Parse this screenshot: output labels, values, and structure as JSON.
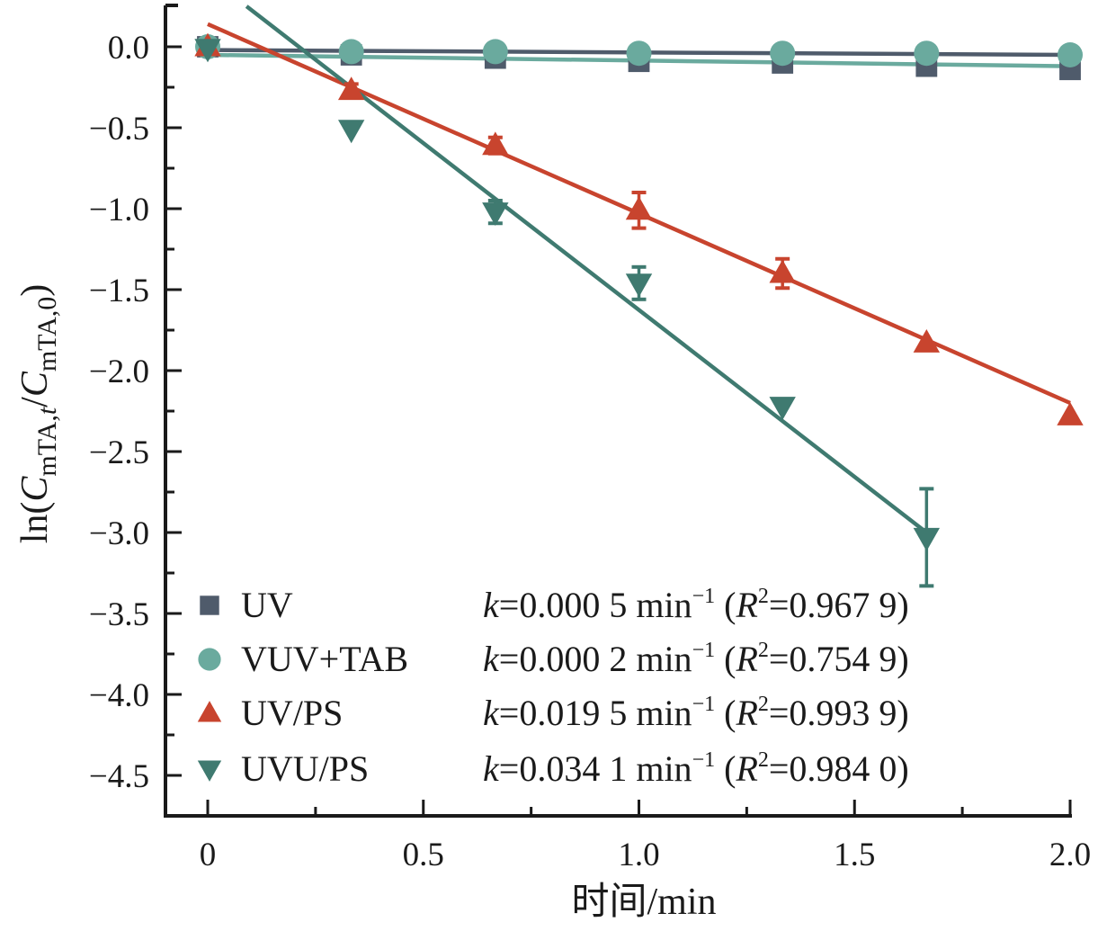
{
  "chart_data": {
    "type": "scatter",
    "title": "",
    "xlabel": "时间/min",
    "ylabel": "ln(C_mTA,t/C_mTA,0)",
    "ylabel_parts": {
      "prefix": "ln(",
      "c1": "C",
      "sub1": "mTA,",
      "sub1_italic": "t",
      "slash": "/",
      "c2": "C",
      "sub2": "mTA,0",
      "suffix": ")"
    },
    "xlim": [
      -0.1,
      2.0
    ],
    "ylim": [
      -4.8,
      0.25
    ],
    "xticks": [
      0,
      0.5,
      1.0,
      1.5,
      2.0
    ],
    "xtick_labels": [
      "0",
      "0.5",
      "1.0",
      "1.5",
      "2.0"
    ],
    "yticks": [
      0.0,
      -0.5,
      -1.0,
      -1.5,
      -2.0,
      -2.5,
      -3.0,
      -3.5,
      -4.0,
      -4.5
    ],
    "ytick_labels": [
      "0.0",
      "−0.5",
      "−1.0",
      "−1.5",
      "−2.0",
      "−2.5",
      "−3.0",
      "−3.5",
      "−4.0",
      "−4.5"
    ],
    "grid": false,
    "legend_position": "bottom-left",
    "x": [
      0,
      0.333,
      0.667,
      1.0,
      1.333,
      1.667,
      2.0
    ],
    "series": [
      {
        "name": "UV",
        "marker": "square",
        "color": "#4f5b6b",
        "values": [
          0.0,
          -0.05,
          -0.07,
          -0.09,
          -0.1,
          -0.12,
          -0.14
        ],
        "errors": [
          0,
          0,
          0,
          0,
          0,
          0,
          0
        ],
        "fit": {
          "x": [
            0,
            2.0
          ],
          "y": [
            -0.02,
            -0.05
          ]
        },
        "annotation": {
          "k_label": "k",
          "k_text": "=0.000 5 min",
          "k_exp": "−1",
          "r_open": " (",
          "r_label": "R",
          "r_exp": "2",
          "r_text": "=0.967 9)"
        }
      },
      {
        "name": "VUV+TAB",
        "marker": "circle",
        "color": "#6aaa9e",
        "values": [
          0.0,
          -0.03,
          -0.03,
          -0.04,
          -0.04,
          -0.04,
          -0.05
        ],
        "errors": [
          0,
          0,
          0,
          0,
          0,
          0,
          0
        ],
        "fit": {
          "x": [
            0,
            2.0
          ],
          "y": [
            -0.05,
            -0.12
          ]
        },
        "annotation": {
          "k_label": "k",
          "k_text": "=0.000 2 min",
          "k_exp": "−1",
          "r_open": " (",
          "r_label": "R",
          "r_exp": "2",
          "r_text": "=0.754 9)"
        }
      },
      {
        "name": "UV/PS",
        "marker": "triangle-up",
        "color": "#c8442e",
        "values": [
          0.0,
          -0.27,
          -0.61,
          -1.01,
          -1.4,
          -1.83,
          -2.28
        ],
        "errors": [
          0.02,
          0.04,
          0.05,
          0.11,
          0.09,
          0.02,
          0.02
        ],
        "fit": {
          "x": [
            0.0,
            2.0
          ],
          "y": [
            0.14,
            -2.2
          ]
        },
        "annotation": {
          "k_label": "k",
          "k_text": "=0.019 5 min",
          "k_exp": "−1",
          "r_open": " (",
          "r_label": "R",
          "r_exp": "2",
          "r_text": "=0.993 9)"
        }
      },
      {
        "name": "UVU/PS",
        "marker": "triangle-down",
        "color": "#3f7a70",
        "values": [
          -0.01,
          -0.51,
          -1.02,
          -1.46,
          -2.22,
          -3.03
        ],
        "x_override": [
          0,
          0.333,
          0.667,
          1.0,
          1.333,
          1.667
        ],
        "errors": [
          0.02,
          0.02,
          0.07,
          0.1,
          0.03,
          0.3
        ],
        "fit": {
          "x": [
            0.09,
            1.667
          ],
          "y": [
            0.25,
            -3.0
          ]
        },
        "annotation": {
          "k_label": "k",
          "k_text": "=0.034 1 min",
          "k_exp": "−1",
          "r_open": " (",
          "r_label": "R",
          "r_exp": "2",
          "r_text": "=0.984 0)"
        }
      }
    ]
  }
}
